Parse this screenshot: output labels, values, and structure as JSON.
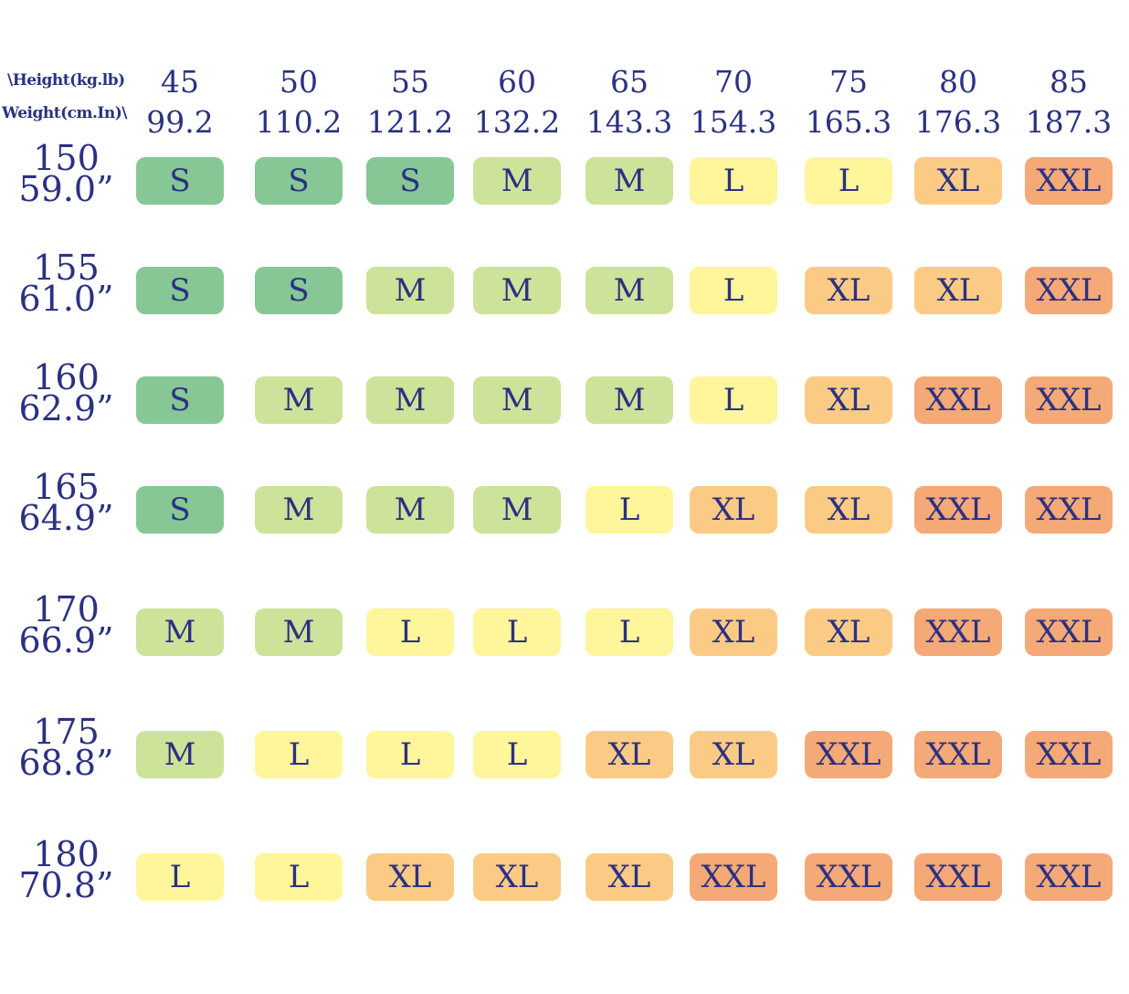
{
  "chart_data": {
    "type": "heatmap",
    "corner_label": {
      "line1": "\\Height(kg.lb)",
      "line2": "Weight(cm.In)\\"
    },
    "columns": [
      {
        "kg": "45",
        "lb": "99.2"
      },
      {
        "kg": "50",
        "lb": "110.2"
      },
      {
        "kg": "55",
        "lb": "121.2"
      },
      {
        "kg": "60",
        "lb": "132.2"
      },
      {
        "kg": "65",
        "lb": "143.3"
      },
      {
        "kg": "70",
        "lb": "154.3"
      },
      {
        "kg": "75",
        "lb": "165.3"
      },
      {
        "kg": "80",
        "lb": "176.3"
      },
      {
        "kg": "85",
        "lb": "187.3"
      }
    ],
    "rows": [
      {
        "cm": "150",
        "in": "59.0”",
        "sizes": [
          "S",
          "S",
          "S",
          "M",
          "M",
          "L",
          "L",
          "XL",
          "XXL"
        ]
      },
      {
        "cm": "155",
        "in": "61.0”",
        "sizes": [
          "S",
          "S",
          "M",
          "M",
          "M",
          "L",
          "XL",
          "XL",
          "XXL"
        ]
      },
      {
        "cm": "160",
        "in": "62.9”",
        "sizes": [
          "S",
          "M",
          "M",
          "M",
          "M",
          "L",
          "XL",
          "XXL",
          "XXL"
        ]
      },
      {
        "cm": "165",
        "in": "64.9”",
        "sizes": [
          "S",
          "M",
          "M",
          "M",
          "L",
          "XL",
          "XL",
          "XXL",
          "XXL"
        ]
      },
      {
        "cm": "170",
        "in": "66.9”",
        "sizes": [
          "M",
          "M",
          "L",
          "L",
          "L",
          "XL",
          "XL",
          "XXL",
          "XXL"
        ]
      },
      {
        "cm": "175",
        "in": "68.8”",
        "sizes": [
          "M",
          "L",
          "L",
          "L",
          "XL",
          "XL",
          "XXL",
          "XXL",
          "XXL"
        ]
      },
      {
        "cm": "180",
        "in": "70.8”",
        "sizes": [
          "L",
          "L",
          "XL",
          "XL",
          "XL",
          "XXL",
          "XXL",
          "XXL",
          "XXL"
        ]
      }
    ],
    "size_colors": {
      "S": "#86c795",
      "M": "#cde39a",
      "L": "#fff59b",
      "XL": "#fbcb86",
      "XXL": "#f5a977"
    },
    "text_color": "#2b3182"
  }
}
